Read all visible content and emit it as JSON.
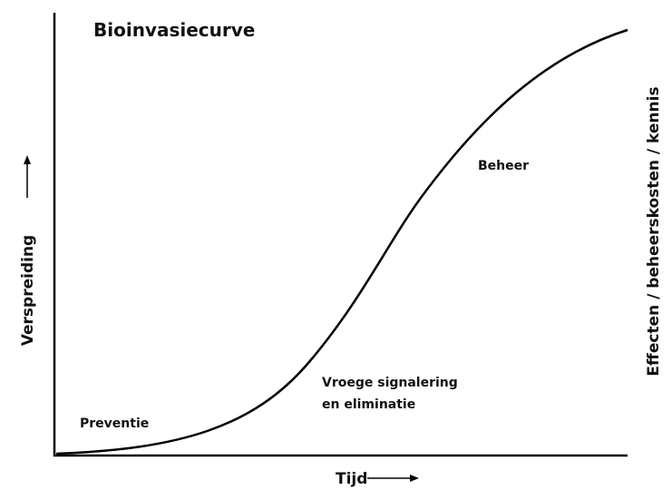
{
  "title": "Bioinvasiecurve",
  "x_axis_label": "Tijd",
  "y_axis_label": "Verspreiding",
  "right_axis_label": "Effecten / beheerskosten / kennis",
  "annotations": {
    "preventie": "Preventie",
    "vroege_1": "Vroege signalering",
    "vroege_2": "en eliminatie",
    "beheer": "Beheer"
  }
}
